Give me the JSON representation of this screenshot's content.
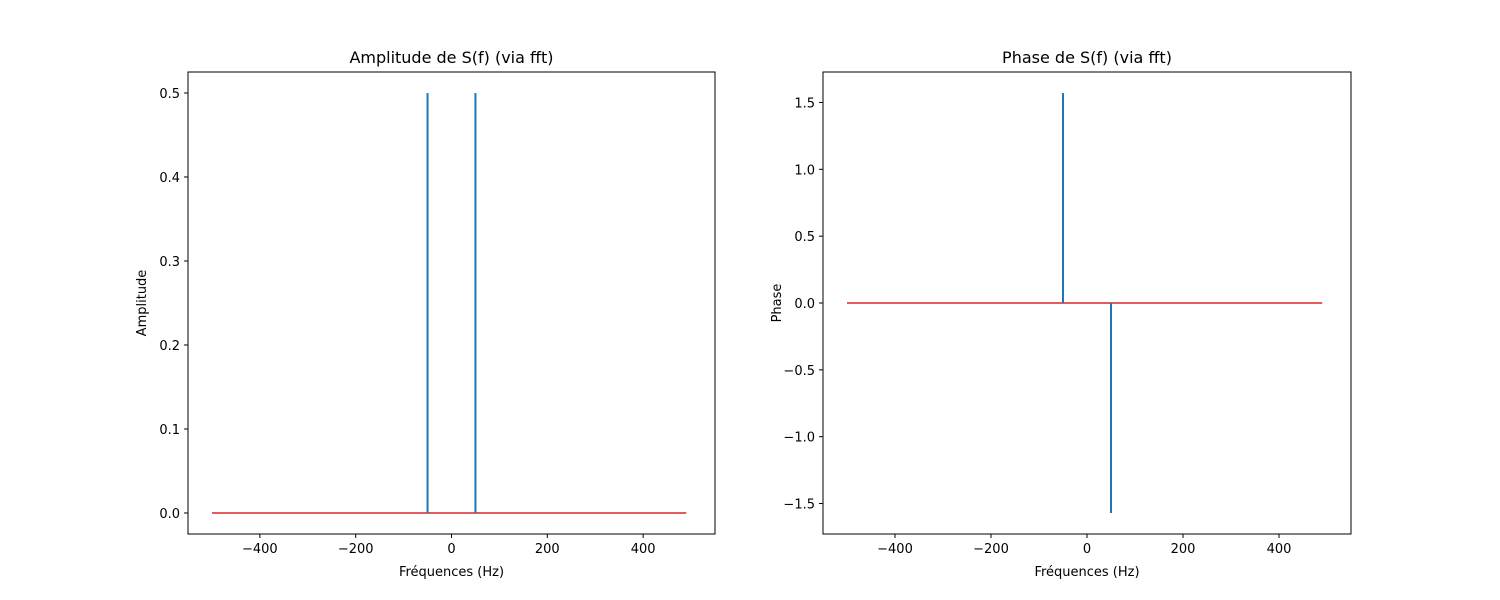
{
  "chart_data": [
    {
      "type": "stem",
      "title": "Amplitude de S(f) (via fft)",
      "xlabel": "Fréquences (Hz)",
      "ylabel": "Amplitude",
      "xlim": [
        -550,
        550
      ],
      "ylim": [
        -0.025,
        0.525
      ],
      "xticks": [
        -400,
        -200,
        0,
        200,
        400
      ],
      "xtick_labels": [
        "−400",
        "−200",
        "0",
        "200",
        "400"
      ],
      "yticks": [
        0.0,
        0.1,
        0.2,
        0.3,
        0.4,
        0.5
      ],
      "ytick_labels": [
        "0.0",
        "0.1",
        "0.2",
        "0.3",
        "0.4",
        "0.5"
      ],
      "stems": [
        {
          "x": -50,
          "y": 0.5
        },
        {
          "x": 50,
          "y": 0.5
        }
      ],
      "baseline": {
        "x": [
          -500,
          490
        ],
        "y": 0
      },
      "grid": false,
      "colors": {
        "stem": "#1f77b4",
        "baseline": "#d62728"
      }
    },
    {
      "type": "stem",
      "title": "Phase de S(f) (via fft)",
      "xlabel": "Fréquences (Hz)",
      "ylabel": "Phase",
      "xlim": [
        -550,
        550
      ],
      "ylim": [
        -1.7279,
        1.7279
      ],
      "xticks": [
        -400,
        -200,
        0,
        200,
        400
      ],
      "xtick_labels": [
        "−400",
        "−200",
        "0",
        "200",
        "400"
      ],
      "yticks": [
        -1.5,
        -1.0,
        -0.5,
        0.0,
        0.5,
        1.0,
        1.5
      ],
      "ytick_labels": [
        "−1.5",
        "−1.0",
        "−0.5",
        "0.0",
        "0.5",
        "1.0",
        "1.5"
      ],
      "stems": [
        {
          "x": -50,
          "y": 1.5708
        },
        {
          "x": 50,
          "y": -1.5708
        }
      ],
      "baseline": {
        "x": [
          -500,
          490
        ],
        "y": 0
      },
      "grid": false,
      "colors": {
        "stem": "#1f77b4",
        "baseline": "#d62728"
      }
    }
  ]
}
